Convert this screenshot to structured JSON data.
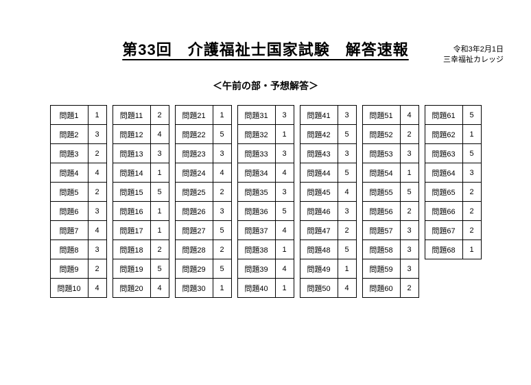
{
  "header": {
    "date": "令和3年2月1日",
    "org": "三幸福祉カレッジ"
  },
  "title": "第33回　介護福祉士国家試験　解答速報",
  "section": "＜午前の部・予想解答＞",
  "qprefix": "問題",
  "columns": [
    [
      [
        "1",
        "1"
      ],
      [
        "2",
        "3"
      ],
      [
        "3",
        "2"
      ],
      [
        "4",
        "4"
      ],
      [
        "5",
        "2"
      ],
      [
        "6",
        "3"
      ],
      [
        "7",
        "4"
      ],
      [
        "8",
        "3"
      ],
      [
        "9",
        "2"
      ],
      [
        "10",
        "4"
      ]
    ],
    [
      [
        "11",
        "2"
      ],
      [
        "12",
        "4"
      ],
      [
        "13",
        "3"
      ],
      [
        "14",
        "1"
      ],
      [
        "15",
        "5"
      ],
      [
        "16",
        "1"
      ],
      [
        "17",
        "1"
      ],
      [
        "18",
        "2"
      ],
      [
        "19",
        "5"
      ],
      [
        "20",
        "4"
      ]
    ],
    [
      [
        "21",
        "1"
      ],
      [
        "22",
        "5"
      ],
      [
        "23",
        "3"
      ],
      [
        "24",
        "4"
      ],
      [
        "25",
        "2"
      ],
      [
        "26",
        "3"
      ],
      [
        "27",
        "5"
      ],
      [
        "28",
        "2"
      ],
      [
        "29",
        "5"
      ],
      [
        "30",
        "1"
      ]
    ],
    [
      [
        "31",
        "3"
      ],
      [
        "32",
        "1"
      ],
      [
        "33",
        "3"
      ],
      [
        "34",
        "4"
      ],
      [
        "35",
        "3"
      ],
      [
        "36",
        "5"
      ],
      [
        "37",
        "4"
      ],
      [
        "38",
        "1"
      ],
      [
        "39",
        "4"
      ],
      [
        "40",
        "1"
      ]
    ],
    [
      [
        "41",
        "3"
      ],
      [
        "42",
        "5"
      ],
      [
        "43",
        "3"
      ],
      [
        "44",
        "5"
      ],
      [
        "45",
        "4"
      ],
      [
        "46",
        "3"
      ],
      [
        "47",
        "2"
      ],
      [
        "48",
        "5"
      ],
      [
        "49",
        "1"
      ],
      [
        "50",
        "4"
      ]
    ],
    [
      [
        "51",
        "4"
      ],
      [
        "52",
        "2"
      ],
      [
        "53",
        "3"
      ],
      [
        "54",
        "1"
      ],
      [
        "55",
        "5"
      ],
      [
        "56",
        "2"
      ],
      [
        "57",
        "3"
      ],
      [
        "58",
        "3"
      ],
      [
        "59",
        "3"
      ],
      [
        "60",
        "2"
      ]
    ],
    [
      [
        "61",
        "5"
      ],
      [
        "62",
        "1"
      ],
      [
        "63",
        "5"
      ],
      [
        "64",
        "3"
      ],
      [
        "65",
        "2"
      ],
      [
        "66",
        "2"
      ],
      [
        "67",
        "2"
      ],
      [
        "68",
        "1"
      ]
    ]
  ]
}
